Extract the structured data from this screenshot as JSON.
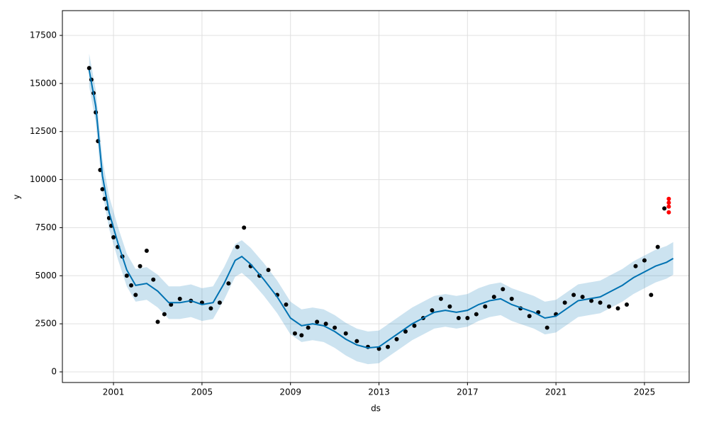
{
  "chart_data": {
    "type": "forecast",
    "xlabel": "ds",
    "ylabel": "y",
    "xlim": [
      1998.69,
      2027.02
    ],
    "ylim": [
      -553,
      18790
    ],
    "xticks": [
      2001,
      2005,
      2009,
      2013,
      2017,
      2021,
      2025
    ],
    "yticks": [
      0,
      2500,
      5000,
      7500,
      10000,
      12500,
      15000,
      17500
    ],
    "grid": true,
    "observed": {
      "color": "#000000",
      "x": [
        1999.9,
        2000.0,
        2000.1,
        2000.2,
        2000.3,
        2000.4,
        2000.5,
        2000.6,
        2000.7,
        2000.8,
        2000.9,
        2001.0,
        2001.2,
        2001.4,
        2001.6,
        2001.8,
        2002.0,
        2002.2,
        2002.5,
        2002.8,
        2003.0,
        2003.3,
        2003.6,
        2004.0,
        2004.5,
        2005.0,
        2005.4,
        2005.8,
        2006.2,
        2006.6,
        2006.9,
        2007.2,
        2007.6,
        2008.0,
        2008.4,
        2008.8,
        2009.2,
        2009.5,
        2009.8,
        2010.2,
        2010.6,
        2011.0,
        2011.5,
        2012.0,
        2012.5,
        2013.0,
        2013.4,
        2013.8,
        2014.2,
        2014.6,
        2015.0,
        2015.4,
        2015.8,
        2016.2,
        2016.6,
        2017.0,
        2017.4,
        2017.8,
        2018.2,
        2018.6,
        2019.0,
        2019.4,
        2019.8,
        2020.2,
        2020.6,
        2021.0,
        2021.4,
        2021.8,
        2022.2,
        2022.6,
        2023.0,
        2023.4,
        2023.8,
        2024.2,
        2024.6,
        2025.0,
        2025.3,
        2025.6,
        2025.9
      ],
      "values": [
        15800,
        15200,
        14500,
        13500,
        12000,
        10500,
        9500,
        9000,
        8500,
        8000,
        7600,
        7000,
        6500,
        6000,
        5000,
        4500,
        4000,
        5500,
        6300,
        4800,
        2600,
        3000,
        3500,
        3800,
        3700,
        3600,
        3300,
        3600,
        4600,
        6500,
        7500,
        5500,
        5000,
        5300,
        4000,
        3500,
        2000,
        1900,
        2300,
        2600,
        2500,
        2300,
        2000,
        1600,
        1300,
        1200,
        1300,
        1700,
        2100,
        2400,
        2800,
        3200,
        3800,
        3400,
        2800,
        2800,
        3000,
        3400,
        3900,
        4300,
        3800,
        3300,
        2900,
        3100,
        2300,
        3000,
        3600,
        4000,
        3900,
        3700,
        3600,
        3400,
        3300,
        3500,
        5500,
        5800,
        4000,
        6500,
        8500
      ]
    },
    "recent": {
      "color": "#ff0000",
      "x": [
        2026.1,
        2026.1,
        2026.1,
        2026.1
      ],
      "values": [
        8300,
        8600,
        9000,
        8800
      ]
    },
    "forecast": {
      "color": "#0072B2",
      "x": [
        1999.9,
        2000.2,
        2000.5,
        2000.8,
        2001.2,
        2001.6,
        2002.0,
        2002.5,
        2003.0,
        2003.5,
        2004.0,
        2004.5,
        2005.0,
        2005.5,
        2006.0,
        2006.5,
        2006.8,
        2007.2,
        2007.8,
        2008.4,
        2009.0,
        2009.5,
        2010.0,
        2010.5,
        2011.0,
        2011.5,
        2012.0,
        2012.5,
        2013.0,
        2013.5,
        2014.0,
        2014.5,
        2015.0,
        2015.5,
        2016.0,
        2016.5,
        2017.0,
        2017.5,
        2018.0,
        2018.5,
        2019.0,
        2019.5,
        2020.0,
        2020.5,
        2021.0,
        2021.5,
        2022.0,
        2022.5,
        2023.0,
        2023.5,
        2024.0,
        2024.5,
        2025.0,
        2025.5,
        2026.0,
        2026.3
      ],
      "values": [
        15700,
        13800,
        10200,
        8300,
        6700,
        5300,
        4500,
        4600,
        4200,
        3600,
        3600,
        3700,
        3500,
        3600,
        4600,
        5800,
        6000,
        5600,
        4800,
        3900,
        2800,
        2400,
        2500,
        2400,
        2100,
        1700,
        1400,
        1250,
        1300,
        1700,
        2100,
        2500,
        2800,
        3100,
        3200,
        3100,
        3200,
        3500,
        3700,
        3800,
        3500,
        3300,
        3100,
        2800,
        2900,
        3300,
        3700,
        3800,
        3900,
        4200,
        4500,
        4900,
        5200,
        5500,
        5700,
        5900
      ],
      "lower": [
        14850,
        12950,
        9350,
        7450,
        5850,
        4450,
        3650,
        3750,
        3350,
        2750,
        2750,
        2850,
        2650,
        2750,
        3750,
        4950,
        5150,
        4750,
        3950,
        3050,
        1950,
        1550,
        1650,
        1550,
        1250,
        850,
        550,
        400,
        450,
        850,
        1250,
        1650,
        1950,
        2250,
        2350,
        2250,
        2350,
        2650,
        2850,
        2950,
        2650,
        2450,
        2250,
        1950,
        2050,
        2450,
        2850,
        2950,
        3050,
        3350,
        3650,
        4050,
        4350,
        4650,
        4850,
        5050
      ],
      "upper": [
        16550,
        14650,
        11050,
        9150,
        7550,
        6150,
        5350,
        5450,
        5050,
        4450,
        4450,
        4550,
        4350,
        4450,
        5450,
        6650,
        6850,
        6450,
        5650,
        4750,
        3650,
        3250,
        3350,
        3250,
        2950,
        2550,
        2250,
        2100,
        2150,
        2550,
        2950,
        3350,
        3650,
        3950,
        4050,
        3950,
        4050,
        4350,
        4550,
        4650,
        4350,
        4150,
        3950,
        3650,
        3750,
        4150,
        4550,
        4650,
        4750,
        5050,
        5350,
        5750,
        6050,
        6350,
        6550,
        6750
      ]
    }
  }
}
